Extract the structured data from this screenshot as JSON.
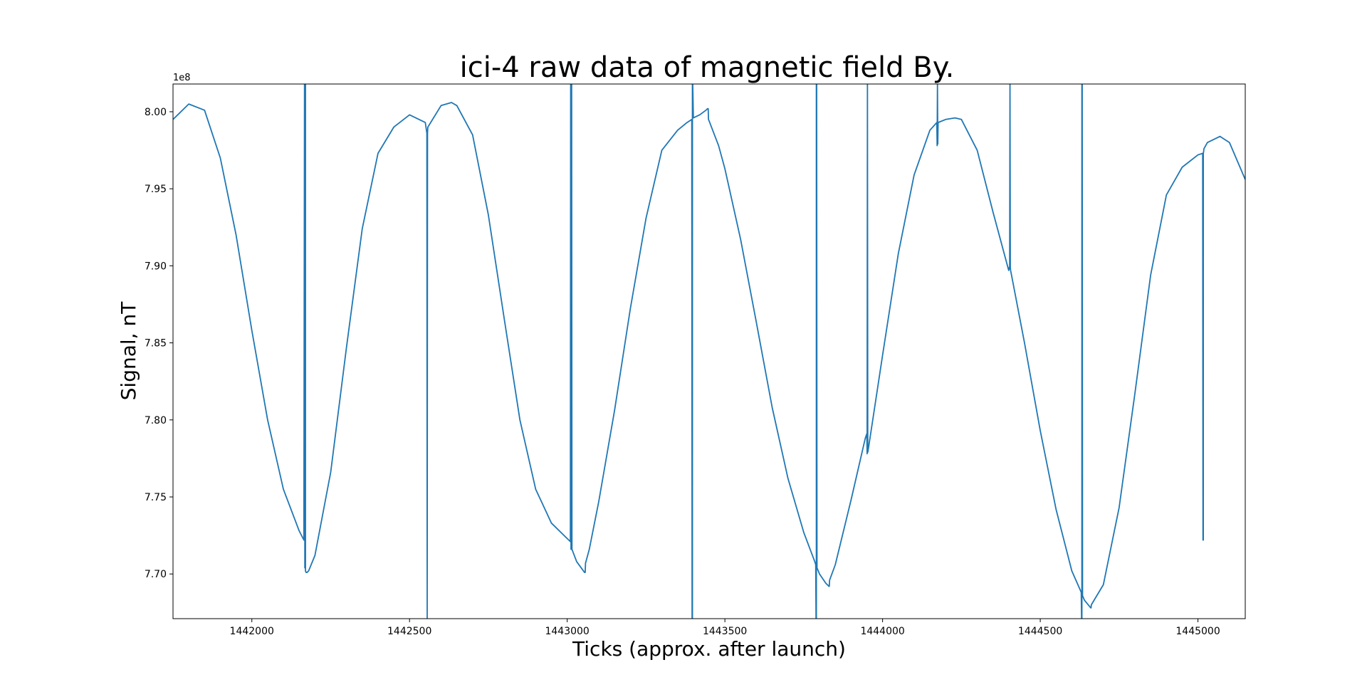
{
  "chart_data": {
    "type": "line",
    "title": "ici-4 raw data of magnetic field By.",
    "xlabel": "Ticks (approx. after launch)",
    "ylabel": "Signal, nT",
    "y_offset_label": "1e8",
    "y_multiplier": 100000000,
    "xlim": [
      1441750,
      1445150
    ],
    "ylim": [
      7.671,
      8.018
    ],
    "x_ticks": [
      1442000,
      1442500,
      1443000,
      1443500,
      1444000,
      1444500,
      1445000
    ],
    "x_tick_labels": [
      "1442000",
      "1442500",
      "1443000",
      "1443500",
      "1444000",
      "1444500",
      "1445000"
    ],
    "y_ticks": [
      7.7,
      7.75,
      7.8,
      7.85,
      7.9,
      7.95,
      8.0
    ],
    "y_tick_labels": [
      "7.70",
      "7.75",
      "7.80",
      "7.85",
      "7.90",
      "7.95",
      "8.00"
    ],
    "grid": false,
    "legend": "none",
    "line_color": "#1f77b4",
    "series": [
      {
        "x": [
          1441750,
          1441800,
          1441850,
          1441900,
          1441950,
          1442000,
          1442050,
          1442100,
          1442150,
          1442165,
          1442167,
          1442168,
          1442168,
          1442169,
          1442170,
          1442170,
          1442172,
          1442175,
          1442180,
          1442200,
          1442250,
          1442300,
          1442350,
          1442400,
          1442450,
          1442500,
          1442550,
          1442555,
          1442556,
          1442556,
          1442557,
          1442558,
          1442600,
          1442633,
          1442650,
          1442700,
          1442750,
          1442800,
          1442850,
          1442900,
          1442950,
          1443000,
          1443010,
          1443011,
          1443012,
          1443012,
          1443013,
          1443014,
          1443015,
          1443030,
          1443055,
          1443057,
          1443058,
          1443070,
          1443100,
          1443150,
          1443200,
          1443250,
          1443300,
          1443350,
          1443380,
          1443395,
          1443396,
          1443397,
          1443397,
          1443398,
          1443400,
          1443420,
          1443440,
          1443445,
          1443447,
          1443448,
          1443450,
          1443480,
          1443500,
          1443550,
          1443600,
          1443650,
          1443700,
          1443750,
          1443785,
          1443788,
          1443789,
          1443790,
          1443790,
          1443791,
          1443792,
          1443800,
          1443820,
          1443830,
          1443831,
          1443832,
          1443850,
          1443900,
          1443945,
          1443950,
          1443951,
          1443952,
          1443952,
          1443953,
          1443954,
          1444000,
          1444050,
          1444100,
          1444150,
          1444172,
          1444173,
          1444174,
          1444174,
          1444175,
          1444176,
          1444200,
          1444230,
          1444250,
          1444300,
          1444350,
          1444400,
          1444402,
          1444403,
          1444404,
          1444404,
          1444405,
          1444406,
          1444450,
          1444500,
          1444550,
          1444600,
          1444628,
          1444630,
          1444631,
          1444632,
          1444632,
          1444633,
          1444634,
          1444640,
          1444660,
          1444661,
          1444662,
          1444700,
          1444750,
          1444800,
          1444850,
          1444900,
          1444950,
          1445000,
          1445015,
          1445016,
          1445017,
          1445017,
          1445018,
          1445019,
          1445030,
          1445070,
          1445100,
          1445150
        ],
        "y": [
          7.995,
          8.005,
          8.001,
          7.97,
          7.92,
          7.858,
          7.8,
          7.755,
          7.728,
          7.722,
          8.018,
          8.018,
          7.704,
          8.018,
          8.018,
          7.702,
          7.701,
          7.701,
          7.702,
          7.712,
          7.766,
          7.847,
          7.924,
          7.973,
          7.99,
          7.998,
          7.993,
          7.986,
          7.671,
          7.671,
          7.986,
          7.99,
          8.004,
          8.006,
          8.004,
          7.985,
          7.933,
          7.866,
          7.8,
          7.755,
          7.733,
          7.723,
          7.721,
          8.018,
          8.018,
          7.716,
          8.018,
          8.018,
          7.716,
          7.708,
          7.701,
          7.701,
          7.707,
          7.716,
          7.747,
          7.806,
          7.872,
          7.931,
          7.975,
          7.988,
          7.993,
          7.995,
          7.671,
          7.671,
          8.018,
          8.018,
          7.996,
          7.998,
          8.001,
          8.002,
          8.002,
          7.995,
          7.994,
          7.978,
          7.963,
          7.917,
          7.863,
          7.808,
          7.762,
          7.727,
          7.708,
          7.706,
          7.671,
          7.671,
          8.018,
          8.018,
          7.704,
          7.7,
          7.694,
          7.692,
          7.692,
          7.696,
          7.706,
          7.748,
          7.788,
          7.791,
          7.778,
          8.018,
          8.018,
          7.779,
          7.78,
          7.842,
          7.908,
          7.959,
          7.988,
          7.993,
          7.978,
          8.018,
          8.018,
          7.979,
          7.993,
          7.995,
          7.996,
          7.995,
          7.975,
          7.935,
          7.897,
          7.899,
          7.898,
          8.018,
          8.018,
          7.899,
          7.897,
          7.85,
          7.793,
          7.742,
          7.702,
          7.689,
          7.688,
          7.671,
          7.671,
          8.018,
          8.018,
          7.686,
          7.683,
          7.678,
          7.678,
          7.68,
          7.693,
          7.743,
          7.817,
          7.894,
          7.946,
          7.964,
          7.972,
          7.973,
          7.722,
          7.722,
          7.973,
          7.974,
          7.976,
          7.98,
          7.984,
          7.98,
          7.956
        ]
      }
    ]
  }
}
